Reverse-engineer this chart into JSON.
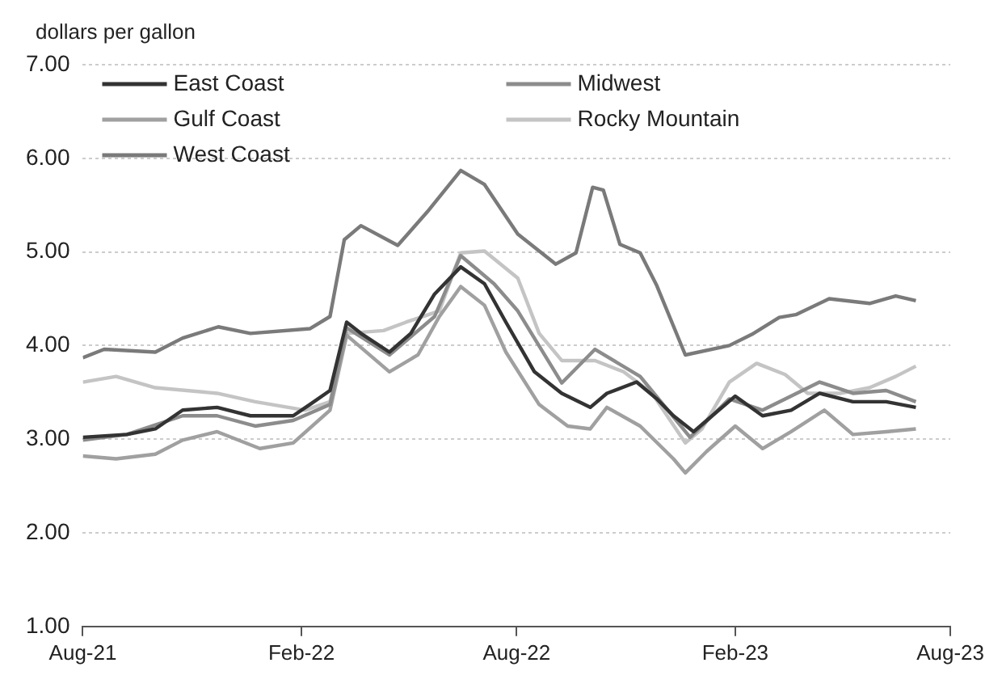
{
  "chart_data": {
    "type": "line",
    "ylabel": "dollars per gallon",
    "ylim": [
      1,
      7
    ],
    "yticks": [
      {
        "value": 1,
        "label": "1.00"
      },
      {
        "value": 2,
        "label": "2.00"
      },
      {
        "value": 3,
        "label": "3.00"
      },
      {
        "value": 4,
        "label": "4.00"
      },
      {
        "value": 5,
        "label": "5.00"
      },
      {
        "value": 6,
        "label": "6.00"
      },
      {
        "value": 7,
        "label": "7.00"
      }
    ],
    "xlim": [
      "2021-08-01",
      "2023-08-01"
    ],
    "xticks": [
      {
        "value": "2021-08-01",
        "label": "Aug-21"
      },
      {
        "value": "2022-02-01",
        "label": "Feb-22"
      },
      {
        "value": "2022-08-01",
        "label": "Aug-22"
      },
      {
        "value": "2023-02-01",
        "label": "Feb-23"
      },
      {
        "value": "2023-08-01",
        "label": "Aug-23"
      }
    ],
    "grid": "y",
    "legend": "top left",
    "marker": "none",
    "line_style": "solid",
    "series": [
      {
        "name": "East Coast",
        "color": "#333333",
        "x": [
          "2021-08-01",
          "2021-09-07",
          "2021-10-01",
          "2021-10-24",
          "2021-11-22",
          "2021-12-20",
          "2022-01-25",
          "2022-02-08",
          "2022-02-25",
          "2022-03-11",
          "2022-03-23",
          "2022-04-16",
          "2022-05-04",
          "2022-05-24",
          "2022-06-15",
          "2022-07-05",
          "2022-07-23",
          "2022-08-16",
          "2022-09-08",
          "2022-10-02",
          "2022-10-16",
          "2022-11-10",
          "2022-11-27",
          "2022-12-11",
          "2022-12-28",
          "2023-01-08",
          "2023-02-01",
          "2023-02-24",
          "2023-03-20",
          "2023-04-13",
          "2023-05-11",
          "2023-06-08",
          "2023-07-03"
        ],
        "values": [
          3.02,
          3.05,
          3.11,
          3.31,
          3.34,
          3.25,
          3.25,
          3.37,
          3.52,
          4.25,
          4.13,
          3.93,
          4.13,
          4.55,
          4.84,
          4.66,
          4.25,
          3.72,
          3.49,
          3.34,
          3.49,
          3.61,
          3.43,
          3.25,
          3.08,
          3.2,
          3.46,
          3.25,
          3.31,
          3.49,
          3.4,
          3.4,
          3.34
        ]
      },
      {
        "name": "Midwest",
        "color": "#8c8c8c",
        "x": [
          "2021-08-01",
          "2021-09-07",
          "2021-10-24",
          "2021-11-22",
          "2021-12-24",
          "2022-01-25",
          "2022-02-25",
          "2022-03-11",
          "2022-04-16",
          "2022-05-24",
          "2022-06-15",
          "2022-07-13",
          "2022-08-02",
          "2022-09-08",
          "2022-10-06",
          "2022-11-13",
          "2022-12-25",
          "2023-01-27",
          "2023-02-24",
          "2023-04-13",
          "2023-05-11",
          "2023-06-08",
          "2023-07-03"
        ],
        "values": [
          2.99,
          3.05,
          3.25,
          3.25,
          3.14,
          3.2,
          3.37,
          4.19,
          3.9,
          4.31,
          4.96,
          4.66,
          4.37,
          3.6,
          3.96,
          3.67,
          3.02,
          3.43,
          3.31,
          3.61,
          3.49,
          3.52,
          3.4
        ]
      },
      {
        "name": "Gulf Coast",
        "color": "#a0a0a0",
        "x": [
          "2021-08-01",
          "2021-08-29",
          "2021-10-01",
          "2021-10-24",
          "2021-11-22",
          "2021-12-28",
          "2022-01-25",
          "2022-02-25",
          "2022-03-11",
          "2022-04-16",
          "2022-05-10",
          "2022-05-28",
          "2022-06-15",
          "2022-07-05",
          "2022-07-23",
          "2022-08-20",
          "2022-09-13",
          "2022-10-02",
          "2022-10-16",
          "2022-11-13",
          "2022-12-11",
          "2022-12-21",
          "2023-01-08",
          "2023-02-01",
          "2023-02-24",
          "2023-03-20",
          "2023-04-17",
          "2023-05-11",
          "2023-06-08",
          "2023-07-03"
        ],
        "values": [
          2.82,
          2.79,
          2.84,
          2.99,
          3.08,
          2.9,
          2.96,
          3.31,
          4.11,
          3.72,
          3.9,
          4.31,
          4.63,
          4.43,
          3.93,
          3.37,
          3.14,
          3.11,
          3.34,
          3.14,
          2.79,
          2.64,
          2.87,
          3.14,
          2.9,
          3.08,
          3.31,
          3.05,
          3.08,
          3.11
        ]
      },
      {
        "name": "Rocky Mountain",
        "color": "#c4c4c4",
        "x": [
          "2021-08-01",
          "2021-08-29",
          "2021-10-01",
          "2021-11-22",
          "2021-12-24",
          "2022-02-04",
          "2022-02-25",
          "2022-03-11",
          "2022-04-11",
          "2022-04-30",
          "2022-05-28",
          "2022-06-15",
          "2022-07-05",
          "2022-08-02",
          "2022-08-20",
          "2022-09-08",
          "2022-10-06",
          "2022-10-30",
          "2022-11-23",
          "2022-12-21",
          "2023-01-04",
          "2023-01-27",
          "2023-02-19",
          "2023-03-15",
          "2023-04-03",
          "2023-05-01",
          "2023-05-25",
          "2023-06-16",
          "2023-07-03"
        ],
        "values": [
          3.61,
          3.67,
          3.55,
          3.49,
          3.4,
          3.31,
          3.4,
          4.13,
          4.16,
          4.25,
          4.37,
          4.99,
          5.01,
          4.72,
          4.13,
          3.84,
          3.84,
          3.72,
          3.49,
          2.96,
          3.11,
          3.61,
          3.81,
          3.69,
          3.49,
          3.49,
          3.55,
          3.67,
          3.78
        ]
      },
      {
        "name": "West Coast",
        "color": "#7a7a7a",
        "x": [
          "2021-08-01",
          "2021-08-19",
          "2021-10-01",
          "2021-10-24",
          "2021-11-23",
          "2021-12-20",
          "2022-02-08",
          "2022-02-25",
          "2022-03-09",
          "2022-03-23",
          "2022-04-23",
          "2022-05-18",
          "2022-06-15",
          "2022-07-05",
          "2022-08-02",
          "2022-09-03",
          "2022-09-20",
          "2022-10-04",
          "2022-10-13",
          "2022-10-27",
          "2022-11-13",
          "2022-11-27",
          "2022-12-21",
          "2023-01-27",
          "2023-02-15",
          "2023-03-10",
          "2023-03-24",
          "2023-04-21",
          "2023-05-25",
          "2023-06-16",
          "2023-07-03"
        ],
        "values": [
          3.87,
          3.96,
          3.93,
          4.08,
          4.2,
          4.13,
          4.18,
          4.31,
          5.13,
          5.28,
          5.07,
          5.43,
          5.87,
          5.72,
          5.19,
          4.87,
          4.99,
          5.69,
          5.66,
          5.08,
          4.99,
          4.64,
          3.9,
          4.0,
          4.12,
          4.3,
          4.33,
          4.5,
          4.45,
          4.53,
          4.48
        ]
      }
    ]
  }
}
